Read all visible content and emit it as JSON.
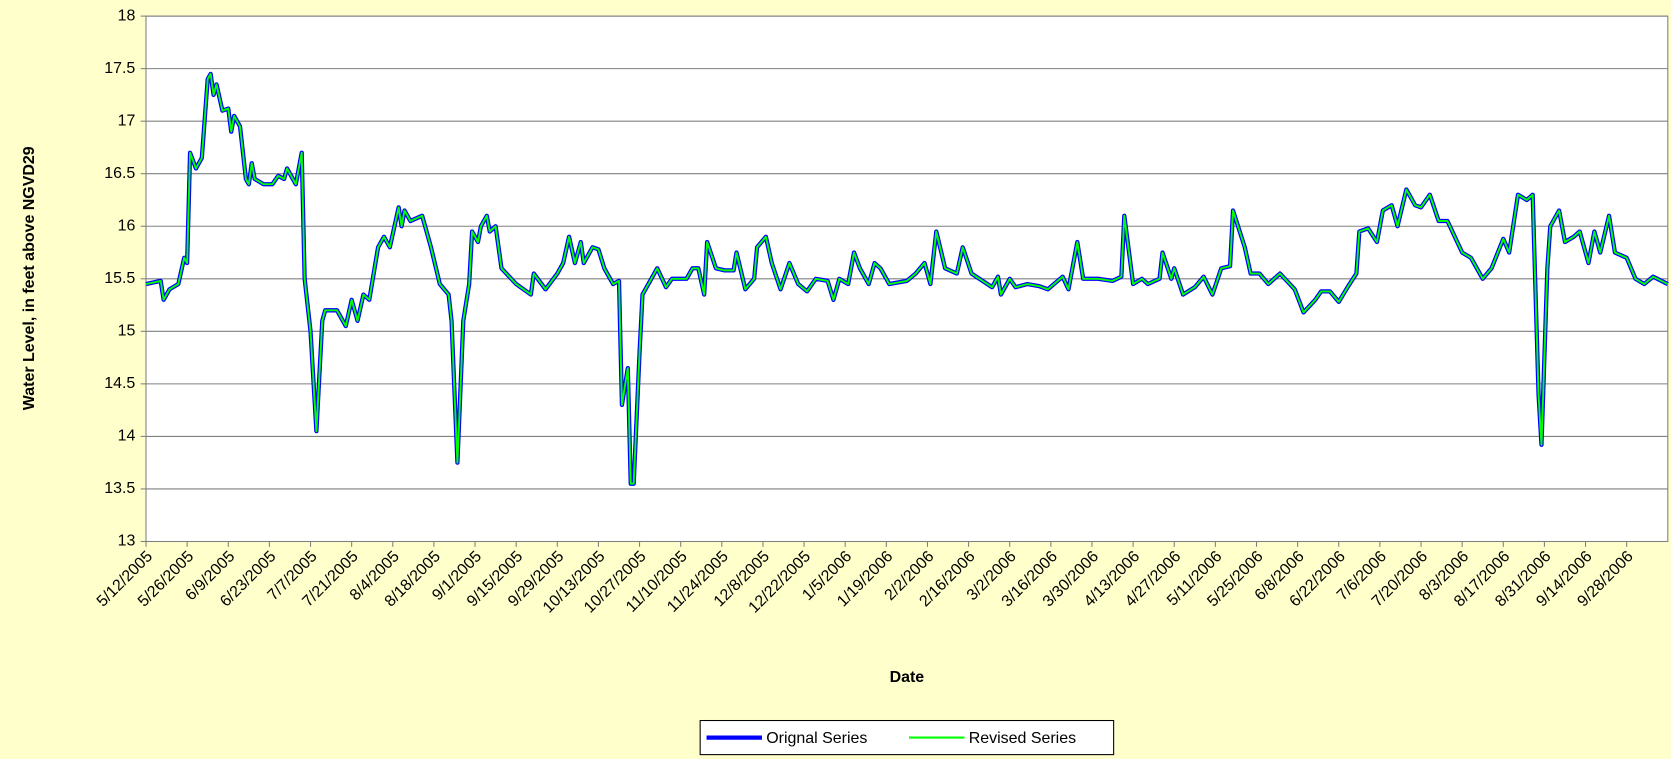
{
  "chart_data": {
    "type": "line",
    "y_label": "Water Level, in feet above NGVD29",
    "x_label": "Date",
    "legend": "bottom",
    "grid": true,
    "ylim": [
      13,
      18
    ],
    "yticks": [
      13,
      13.5,
      14,
      14.5,
      15,
      15.5,
      16,
      16.5,
      17,
      17.5,
      18
    ],
    "xlim": [
      "5/12/2005",
      "10/12/2006"
    ],
    "xticks": [
      "5/12/2005",
      "5/26/2005",
      "6/9/2005",
      "6/23/2005",
      "7/7/2005",
      "7/21/2005",
      "8/4/2005",
      "8/18/2005",
      "9/1/2005",
      "9/15/2005",
      "9/29/2005",
      "10/13/2005",
      "10/27/2005",
      "11/10/2005",
      "11/24/2005",
      "12/8/2005",
      "12/22/2005",
      "1/5/2006",
      "1/19/2006",
      "2/2/2006",
      "2/16/2006",
      "3/2/2006",
      "3/16/2006",
      "3/30/2006",
      "4/13/2006",
      "4/27/2006",
      "5/11/2006",
      "5/25/2006",
      "6/8/2006",
      "6/22/2006",
      "7/6/2006",
      "7/20/2006",
      "8/3/2006",
      "8/17/2006",
      "8/31/2006",
      "9/14/2006",
      "9/28/2006"
    ],
    "x": [
      "5/12/2005",
      "5/17/2005",
      "5/18/2005",
      "5/20/2005",
      "5/23/2005",
      "5/25/2005",
      "5/26/2005",
      "5/27/2005",
      "5/29/2005",
      "5/31/2005",
      "6/2/2005",
      "6/3/2005",
      "6/4/2005",
      "6/5/2005",
      "6/7/2005",
      "6/9/2005",
      "6/10/2005",
      "6/11/2005",
      "6/13/2005",
      "6/15/2005",
      "6/16/2005",
      "6/17/2005",
      "6/18/2005",
      "6/21/2005",
      "6/24/2005",
      "6/26/2005",
      "6/28/2005",
      "6/29/2005",
      "7/2/2005",
      "7/4/2005",
      "7/5/2005",
      "7/7/2005",
      "7/9/2005",
      "7/11/2005",
      "7/12/2005",
      "7/16/2005",
      "7/19/2005",
      "7/21/2005",
      "7/23/2005",
      "7/25/2005",
      "7/27/2005",
      "7/30/2005",
      "8/1/2005",
      "8/3/2005",
      "8/6/2005",
      "8/7/2005",
      "8/8/2005",
      "8/10/2005",
      "8/14/2005",
      "8/17/2005",
      "8/20/2005",
      "8/23/2005",
      "8/24/2005",
      "8/26/2005",
      "8/28/2005",
      "8/30/2005",
      "8/31/2005",
      "9/2/2005",
      "9/3/2005",
      "9/5/2005",
      "9/6/2005",
      "9/8/2005",
      "9/10/2005",
      "9/15/2005",
      "9/20/2005",
      "9/21/2005",
      "9/25/2005",
      "9/29/2005",
      "10/1/2005",
      "10/3/2005",
      "10/5/2005",
      "10/7/2005",
      "10/8/2005",
      "10/11/2005",
      "10/13/2005",
      "10/15/2005",
      "10/18/2005",
      "10/20/2005",
      "10/21/2005",
      "10/23/2005",
      "10/24/2005",
      "10/25/2005",
      "10/27/2005",
      "10/28/2005",
      "10/31/2005",
      "11/2/2005",
      "11/5/2005",
      "11/7/2005",
      "11/12/2005",
      "11/14/2005",
      "11/16/2005",
      "11/18/2005",
      "11/19/2005",
      "11/22/2005",
      "11/25/2005",
      "11/28/2005",
      "11/29/2005",
      "12/2/2005",
      "12/5/2005",
      "12/6/2005",
      "12/9/2005",
      "12/11/2005",
      "12/14/2005",
      "12/17/2005",
      "12/20/2005",
      "12/23/2005",
      "12/26/2005",
      "12/30/2005",
      "1/1/2006",
      "1/3/2006",
      "1/6/2006",
      "1/8/2006",
      "1/10/2006",
      "1/13/2006",
      "1/15/2006",
      "1/17/2006",
      "1/20/2006",
      "1/26/2006",
      "1/29/2006",
      "2/1/2006",
      "2/3/2006",
      "2/5/2006",
      "2/8/2006",
      "2/12/2006",
      "2/14/2006",
      "2/17/2006",
      "2/24/2006",
      "2/26/2006",
      "2/27/2006",
      "3/2/2006",
      "3/4/2006",
      "3/8/2006",
      "3/12/2006",
      "3/15/2006",
      "3/20/2006",
      "3/22/2006",
      "3/25/2006",
      "3/27/2006",
      "4/1/2006",
      "4/6/2006",
      "4/9/2006",
      "4/10/2006",
      "4/13/2006",
      "4/16/2006",
      "4/18/2006",
      "4/22/2006",
      "4/23/2006",
      "4/26/2006",
      "4/27/2006",
      "4/30/2006",
      "5/4/2006",
      "5/7/2006",
      "5/10/2006",
      "5/13/2006",
      "5/16/2006",
      "5/17/2006",
      "5/21/2006",
      "5/23/2006",
      "5/26/2006",
      "5/29/2006",
      "6/2/2006",
      "6/7/2006",
      "6/10/2006",
      "6/14/2006",
      "6/16/2006",
      "6/19/2006",
      "6/22/2006",
      "6/25/2006",
      "6/28/2006",
      "6/29/2006",
      "7/2/2006",
      "7/5/2006",
      "7/7/2006",
      "7/10/2006",
      "7/12/2006",
      "7/15/2006",
      "7/18/2006",
      "7/20/2006",
      "7/23/2006",
      "7/26/2006",
      "7/29/2006",
      "8/3/2006",
      "8/6/2006",
      "8/10/2006",
      "8/13/2006",
      "8/17/2006",
      "8/19/2006",
      "8/22/2006",
      "8/25/2006",
      "8/27/2006",
      "8/29/2006",
      "8/30/2006",
      "9/1/2006",
      "9/2/2006",
      "9/5/2006",
      "9/7/2006",
      "9/10/2006",
      "9/12/2006",
      "9/15/2006",
      "9/17/2006",
      "9/19/2006",
      "9/22/2006",
      "9/24/2006",
      "9/28/2006",
      "10/1/2006",
      "10/4/2006",
      "10/7/2006",
      "10/12/2006"
    ],
    "series": [
      {
        "name": "Orignal Series",
        "color": "#0000ff",
        "values": [
          15.45,
          15.48,
          15.3,
          15.4,
          15.45,
          15.7,
          15.65,
          16.7,
          16.55,
          16.65,
          17.4,
          17.45,
          17.25,
          17.35,
          17.1,
          17.12,
          16.9,
          17.05,
          16.95,
          16.45,
          16.4,
          16.6,
          16.45,
          16.4,
          16.4,
          16.48,
          16.45,
          16.55,
          16.4,
          16.7,
          15.5,
          15.0,
          14.05,
          15.1,
          15.2,
          15.2,
          15.05,
          15.3,
          15.1,
          15.35,
          15.3,
          15.8,
          15.9,
          15.8,
          16.18,
          16.0,
          16.15,
          16.05,
          16.1,
          15.8,
          15.45,
          15.35,
          15.1,
          13.75,
          15.1,
          15.45,
          15.95,
          15.85,
          16.0,
          16.1,
          15.95,
          16.0,
          15.6,
          15.45,
          15.35,
          15.55,
          15.4,
          15.55,
          15.65,
          15.9,
          15.65,
          15.85,
          15.65,
          15.8,
          15.78,
          15.6,
          15.45,
          15.48,
          14.3,
          14.65,
          13.55,
          13.55,
          14.8,
          15.35,
          15.5,
          15.6,
          15.42,
          15.5,
          15.5,
          15.6,
          15.6,
          15.35,
          15.85,
          15.6,
          15.58,
          15.58,
          15.75,
          15.4,
          15.5,
          15.8,
          15.9,
          15.65,
          15.4,
          15.65,
          15.45,
          15.38,
          15.5,
          15.48,
          15.3,
          15.5,
          15.45,
          15.75,
          15.6,
          15.45,
          15.65,
          15.6,
          15.45,
          15.48,
          15.55,
          15.65,
          15.45,
          15.95,
          15.6,
          15.55,
          15.8,
          15.55,
          15.42,
          15.52,
          15.35,
          15.5,
          15.42,
          15.45,
          15.43,
          15.4,
          15.52,
          15.4,
          15.85,
          15.5,
          15.5,
          15.48,
          15.52,
          16.1,
          15.45,
          15.5,
          15.45,
          15.5,
          15.75,
          15.5,
          15.6,
          15.35,
          15.42,
          15.52,
          15.35,
          15.6,
          15.62,
          16.15,
          15.8,
          15.55,
          15.55,
          15.45,
          15.55,
          15.4,
          15.18,
          15.3,
          15.38,
          15.38,
          15.28,
          15.42,
          15.55,
          15.95,
          15.98,
          15.85,
          16.15,
          16.2,
          16.0,
          16.35,
          16.2,
          16.18,
          16.3,
          16.05,
          16.05,
          15.75,
          15.7,
          15.5,
          15.6,
          15.88,
          15.75,
          16.3,
          16.25,
          16.3,
          14.4,
          13.92,
          15.6,
          16.0,
          16.15,
          15.85,
          15.9,
          15.95,
          15.65,
          15.95,
          15.75,
          16.1,
          15.75,
          15.7,
          15.5,
          15.45,
          15.52,
          15.45
        ]
      },
      {
        "name": "Revised Series",
        "color": "#00ff00",
        "values": [
          15.45,
          15.48,
          15.3,
          15.4,
          15.45,
          15.7,
          15.65,
          16.7,
          16.55,
          16.65,
          17.4,
          17.45,
          17.25,
          17.35,
          17.1,
          17.12,
          16.9,
          17.05,
          16.95,
          16.45,
          16.4,
          16.6,
          16.45,
          16.4,
          16.4,
          16.48,
          16.45,
          16.55,
          16.4,
          16.7,
          15.5,
          15.0,
          14.05,
          15.1,
          15.2,
          15.2,
          15.05,
          15.3,
          15.1,
          15.35,
          15.3,
          15.8,
          15.9,
          15.8,
          16.18,
          16.0,
          16.15,
          16.05,
          16.1,
          15.8,
          15.45,
          15.35,
          15.1,
          13.75,
          15.1,
          15.45,
          15.95,
          15.85,
          16.0,
          16.1,
          15.95,
          16.0,
          15.6,
          15.45,
          15.35,
          15.55,
          15.4,
          15.55,
          15.65,
          15.9,
          15.65,
          15.85,
          15.65,
          15.8,
          15.78,
          15.6,
          15.45,
          15.48,
          14.3,
          14.65,
          13.55,
          13.55,
          14.8,
          15.35,
          15.5,
          15.6,
          15.42,
          15.5,
          15.5,
          15.6,
          15.6,
          15.35,
          15.85,
          15.6,
          15.58,
          15.58,
          15.75,
          15.4,
          15.5,
          15.8,
          15.9,
          15.65,
          15.4,
          15.65,
          15.45,
          15.38,
          15.5,
          15.48,
          15.3,
          15.5,
          15.45,
          15.75,
          15.6,
          15.45,
          15.65,
          15.6,
          15.45,
          15.48,
          15.55,
          15.65,
          15.45,
          15.95,
          15.6,
          15.55,
          15.8,
          15.55,
          15.42,
          15.52,
          15.35,
          15.5,
          15.42,
          15.45,
          15.43,
          15.4,
          15.52,
          15.4,
          15.85,
          15.5,
          15.5,
          15.48,
          15.52,
          16.1,
          15.45,
          15.5,
          15.45,
          15.5,
          15.75,
          15.5,
          15.6,
          15.35,
          15.42,
          15.52,
          15.35,
          15.6,
          15.62,
          16.15,
          15.8,
          15.55,
          15.55,
          15.45,
          15.55,
          15.4,
          15.18,
          15.3,
          15.38,
          15.38,
          15.28,
          15.42,
          15.55,
          15.95,
          15.98,
          15.85,
          16.15,
          16.2,
          16.0,
          16.35,
          16.2,
          16.18,
          16.3,
          16.05,
          16.05,
          15.75,
          15.7,
          15.5,
          15.6,
          15.88,
          15.75,
          16.3,
          16.25,
          16.3,
          14.4,
          13.92,
          15.6,
          16.0,
          16.15,
          15.85,
          15.9,
          15.95,
          15.65,
          15.95,
          15.75,
          16.1,
          15.75,
          15.7,
          15.5,
          15.45,
          15.52,
          15.45
        ]
      }
    ]
  }
}
